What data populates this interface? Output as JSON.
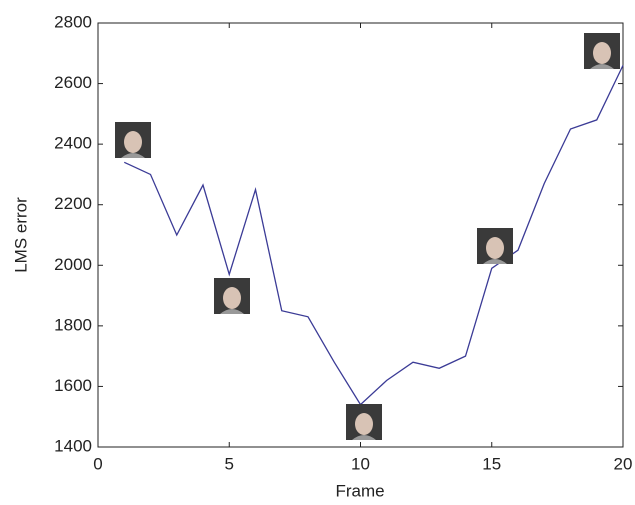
{
  "chart_data": {
    "type": "line",
    "x_label": "Frame",
    "y_label": "LMS error",
    "x": [
      1,
      2,
      3,
      4,
      5,
      6,
      7,
      8,
      9,
      10,
      11,
      12,
      13,
      14,
      15,
      16,
      17,
      18,
      19,
      20
    ],
    "series": [
      {
        "color": "#3b3b96",
        "values": [
          2340,
          2300,
          2100,
          2265,
          1970,
          2250,
          1850,
          1830,
          1680,
          1540,
          1620,
          1680,
          1660,
          1700,
          1990,
          2050,
          2270,
          2450,
          2480,
          2660
        ]
      }
    ],
    "xlim": [
      0,
      20
    ],
    "xticks": [
      0,
      5,
      10,
      15,
      20
    ],
    "ylim": [
      1400,
      2800
    ],
    "yticks": [
      1400,
      1600,
      1800,
      2000,
      2200,
      2400,
      2600,
      2800
    ],
    "grid": false
  }
}
